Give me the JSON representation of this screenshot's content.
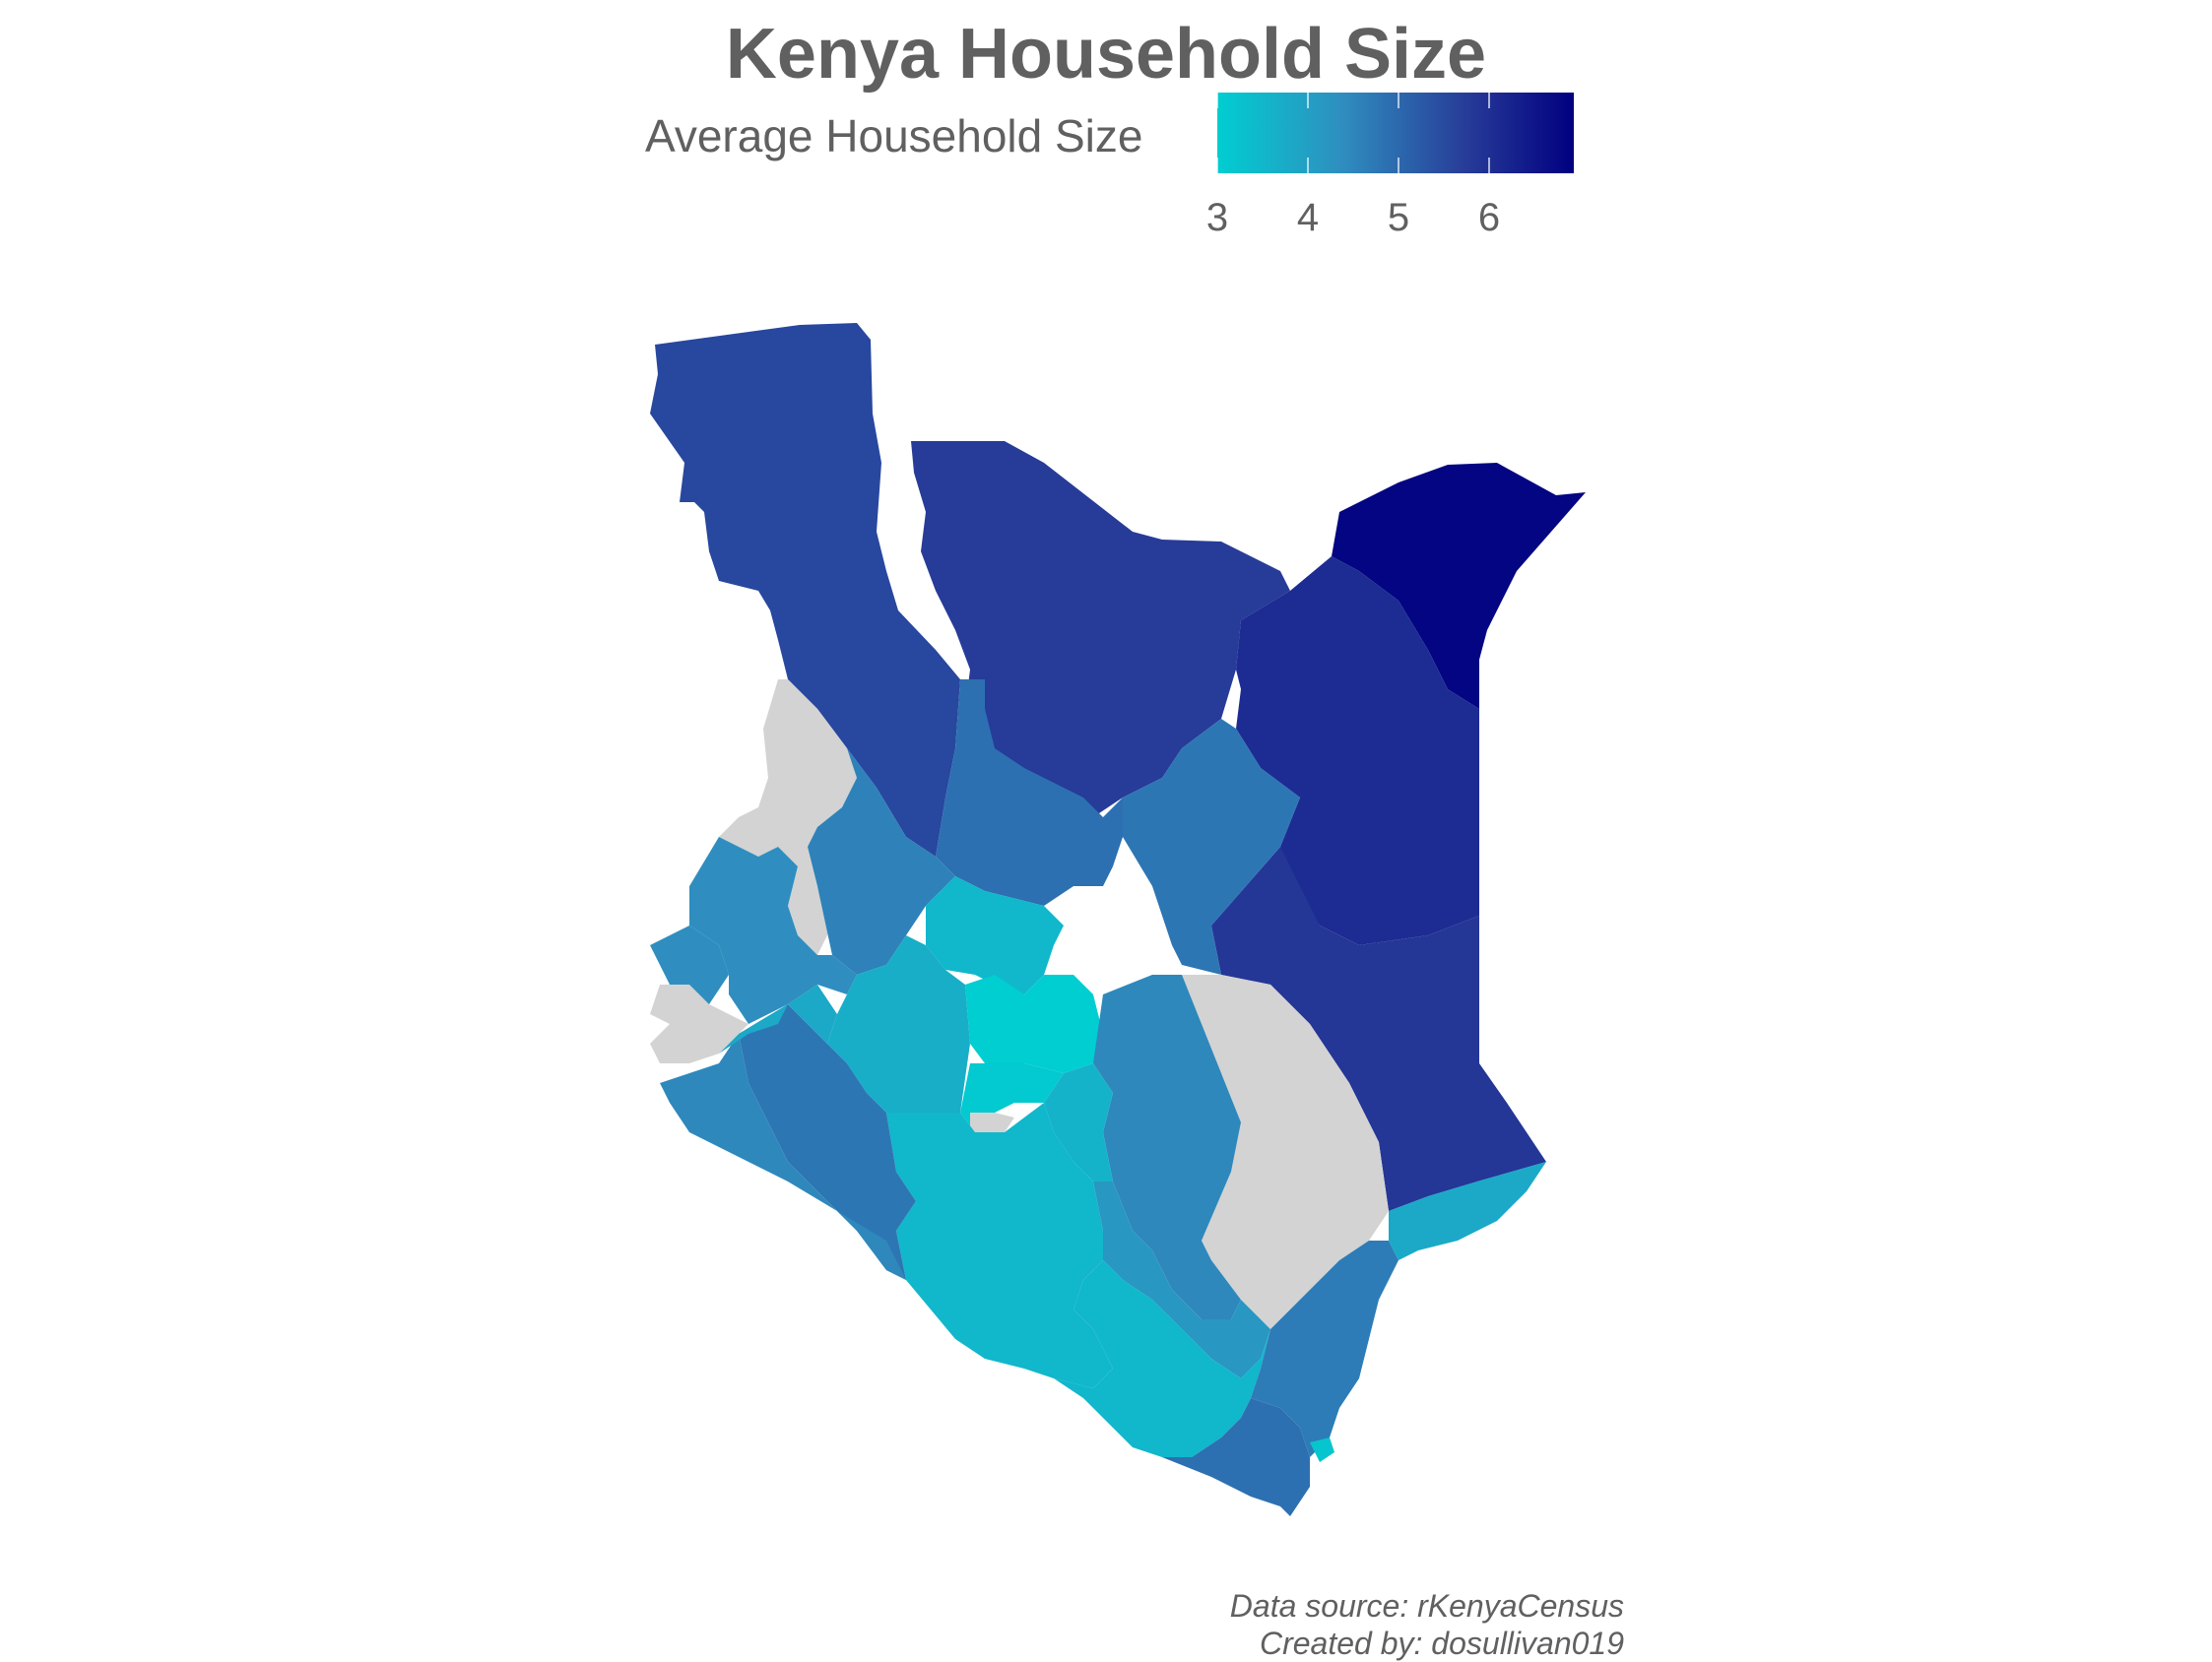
{
  "title": "Kenya Household Size",
  "legend": {
    "label": "Average Household Size",
    "ticks": [
      "3",
      "4",
      "5",
      "6"
    ],
    "color_low": "#00CED1",
    "color_high": "#000080",
    "missing_color": "#D3D3D3"
  },
  "caption": {
    "line1": "Data source: rKenyaCensus",
    "line2": "Created by: dosullivan019"
  },
  "regions": [
    {
      "name": "turkana",
      "value": 5.6
    },
    {
      "name": "marsabit",
      "value": 5.8
    },
    {
      "name": "mandera",
      "value": 6.9
    },
    {
      "name": "wajir",
      "value": 6.1
    },
    {
      "name": "garissa",
      "value": 5.9
    },
    {
      "name": "samburu",
      "value": 4.9
    },
    {
      "name": "isiolo",
      "value": 4.8
    },
    {
      "name": "west-pokot",
      "value": null
    },
    {
      "name": "baringo",
      "value": 4.6
    },
    {
      "name": "tana-river",
      "value": null
    },
    {
      "name": "laikipia",
      "value": 3.5
    },
    {
      "name": "nyeri",
      "value": 3.0
    },
    {
      "name": "kitui",
      "value": 4.5
    },
    {
      "name": "machakos",
      "value": 3.6
    },
    {
      "name": "kajiado",
      "value": 3.5
    },
    {
      "name": "narok",
      "value": 4.8
    },
    {
      "name": "migori",
      "value": 4.5
    },
    {
      "name": "nakuru",
      "value": 3.7
    },
    {
      "name": "nairobi",
      "value": null
    },
    {
      "name": "kiambu",
      "value": 3.1
    },
    {
      "name": "makueni",
      "value": 4.2
    },
    {
      "name": "taita-taveta",
      "value": 3.5
    },
    {
      "name": "kwale",
      "value": 4.9
    },
    {
      "name": "kilifi",
      "value": 4.7
    },
    {
      "name": "mombasa",
      "value": 3.2
    },
    {
      "name": "lamu",
      "value": 3.8
    },
    {
      "name": "kakamega",
      "value": 4.4
    },
    {
      "name": "busia",
      "value": 4.4
    },
    {
      "name": "kisumu",
      "value": 3.8
    },
    {
      "name": "lake-victoria",
      "value": null
    }
  ]
}
